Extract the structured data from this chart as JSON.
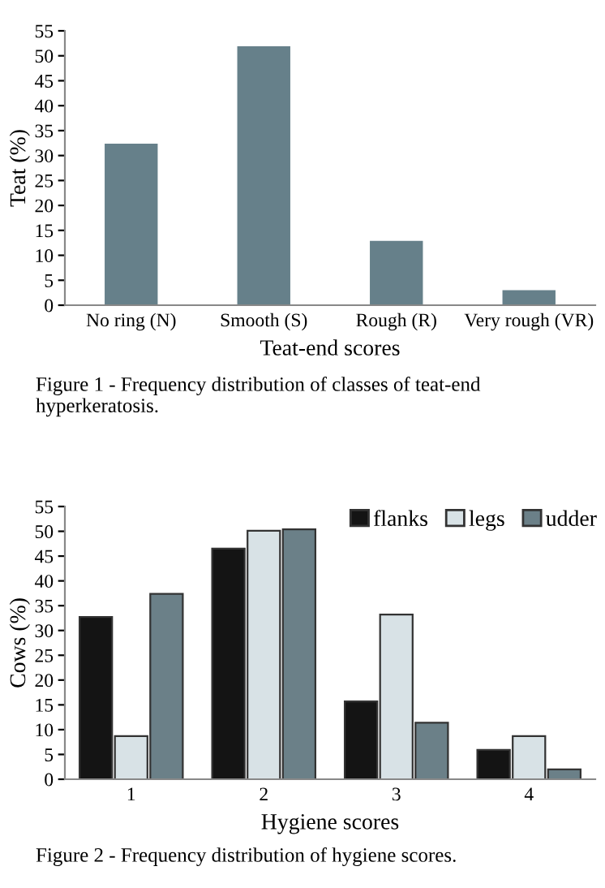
{
  "chart_data": [
    {
      "type": "bar",
      "categories": [
        "No ring (N)",
        "Smooth (S)",
        "Rough (R)",
        "Very rough (VR)"
      ],
      "values": [
        32.4,
        51.9,
        12.9,
        3.0
      ],
      "color": "#66808a",
      "xlabel": "Teat-end scores",
      "ylabel": "Teat (%)",
      "ylim": [
        0,
        55
      ],
      "yticks": [
        0,
        5,
        10,
        15,
        20,
        25,
        30,
        35,
        40,
        45,
        50,
        55
      ],
      "grid": false,
      "legend": false,
      "annotations": [
        "Figure 1 - Frequency distribution of classes of teat-end hyperkeratosis."
      ]
    },
    {
      "type": "bar",
      "categories": [
        "1",
        "2",
        "3",
        "4"
      ],
      "series": [
        {
          "name": "flanks",
          "color": "#141414",
          "values": [
            32.7,
            46.5,
            15.7,
            5.9
          ]
        },
        {
          "name": "legs",
          "color": "#d8e2e6",
          "values": [
            8.7,
            50.1,
            33.2,
            8.7
          ]
        },
        {
          "name": "udder",
          "color": "#6b8088",
          "values": [
            37.4,
            50.4,
            11.4,
            2.0
          ]
        }
      ],
      "xlabel": "Hygiene scores",
      "ylabel": "Cows (%)",
      "ylim": [
        0,
        55
      ],
      "yticks": [
        0,
        5,
        10,
        15,
        20,
        25,
        30,
        35,
        40,
        45,
        50,
        55
      ],
      "grid": false,
      "legend": "top right",
      "annotations": [
        "Figure 2 - Frequency distribution of hygiene scores."
      ]
    }
  ]
}
